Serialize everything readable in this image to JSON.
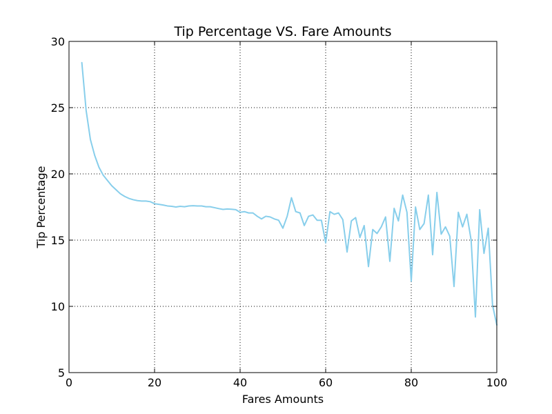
{
  "chart_data": {
    "type": "line",
    "title": "Tip Percentage VS. Fare Amounts",
    "xlabel": "Fares Amounts",
    "ylabel": "Tip Percentage",
    "xlim": [
      0,
      100
    ],
    "ylim": [
      5,
      30
    ],
    "x_ticks": [
      0,
      20,
      40,
      60,
      80,
      100
    ],
    "y_ticks": [
      5,
      10,
      15,
      20,
      25,
      30
    ],
    "grid": true,
    "legend": "none",
    "series": [
      {
        "color": "#87ceeb",
        "x": [
          3,
          4,
          5,
          6,
          7,
          8,
          9,
          10,
          11,
          12,
          13,
          14,
          15,
          16,
          17,
          18,
          19,
          20,
          21,
          22,
          23,
          24,
          25,
          26,
          27,
          28,
          29,
          30,
          31,
          32,
          33,
          34,
          35,
          36,
          37,
          38,
          39,
          40,
          41,
          42,
          43,
          44,
          45,
          46,
          47,
          48,
          49,
          50,
          51,
          52,
          53,
          54,
          55,
          56,
          57,
          58,
          59,
          60,
          61,
          62,
          63,
          64,
          65,
          66,
          67,
          68,
          69,
          70,
          71,
          72,
          73,
          74,
          75,
          76,
          77,
          78,
          79,
          80,
          81,
          82,
          83,
          84,
          85,
          86,
          87,
          88,
          89,
          90,
          91,
          92,
          93,
          94,
          95,
          96,
          97,
          98,
          99,
          100
        ],
        "y": [
          28.4,
          24.8,
          22.6,
          21.4,
          20.5,
          19.9,
          19.5,
          19.1,
          18.8,
          18.5,
          18.3,
          18.15,
          18.05,
          17.98,
          17.95,
          17.95,
          17.9,
          17.75,
          17.7,
          17.65,
          17.58,
          17.55,
          17.5,
          17.55,
          17.52,
          17.58,
          17.6,
          17.58,
          17.58,
          17.52,
          17.52,
          17.45,
          17.38,
          17.32,
          17.35,
          17.33,
          17.3,
          17.1,
          17.15,
          17.05,
          17.05,
          16.8,
          16.6,
          16.8,
          16.75,
          16.6,
          16.5,
          15.9,
          16.8,
          18.2,
          17.15,
          17.05,
          16.1,
          16.8,
          16.9,
          16.5,
          16.5,
          14.8,
          17.15,
          16.95,
          17.05,
          16.55,
          14.1,
          16.45,
          16.7,
          15.2,
          16.1,
          13.0,
          15.8,
          15.5,
          16.0,
          16.75,
          13.4,
          17.4,
          16.45,
          18.4,
          17.1,
          11.9,
          17.5,
          15.8,
          16.25,
          18.4,
          13.9,
          18.6,
          15.45,
          16.0,
          15.3,
          11.5,
          17.1,
          16.0,
          16.95,
          15.0,
          9.2,
          17.3,
          14.0,
          15.9,
          10.1,
          8.6
        ]
      }
    ]
  }
}
